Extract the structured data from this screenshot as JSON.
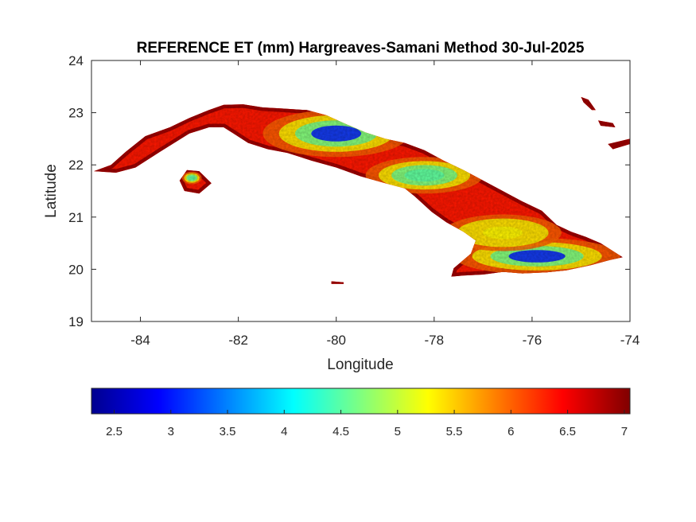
{
  "chart_data": {
    "type": "heatmap",
    "title": "REFERENCE ET (mm) Hargreaves-Samani Method  30-Jul-2025",
    "xlabel": "Longitude",
    "ylabel": "Latitude",
    "xlim": [
      -85,
      -74
    ],
    "ylim": [
      19,
      24
    ],
    "xticks": [
      "-84",
      "-82",
      "-80",
      "-78",
      "-76",
      "-74"
    ],
    "xtick_values": [
      -84,
      -82,
      -80,
      -78,
      -76,
      -74
    ],
    "yticks": [
      "19",
      "20",
      "21",
      "22",
      "23",
      "24"
    ],
    "ytick_values": [
      19,
      20,
      21,
      22,
      23,
      24
    ],
    "colormap": "jet",
    "colorbar": {
      "orientation": "horizontal",
      "range": [
        2.3,
        7.05
      ],
      "ticks": [
        "2.5",
        "3",
        "3.5",
        "4",
        "4.5",
        "5",
        "5.5",
        "6",
        "6.5",
        "7"
      ],
      "tick_values": [
        2.5,
        3,
        3.5,
        4,
        4.5,
        5,
        5.5,
        6,
        6.5,
        7
      ]
    },
    "landmasses": [
      {
        "name": "main-island",
        "outline": [
          [
            -84.95,
            21.88
          ],
          [
            -84.6,
            22.0
          ],
          [
            -84.3,
            22.25
          ],
          [
            -83.9,
            22.55
          ],
          [
            -83.4,
            22.72
          ],
          [
            -83.0,
            22.9
          ],
          [
            -82.6,
            23.05
          ],
          [
            -82.3,
            23.15
          ],
          [
            -81.9,
            23.16
          ],
          [
            -81.5,
            23.1
          ],
          [
            -81.1,
            23.08
          ],
          [
            -80.6,
            23.05
          ],
          [
            -80.2,
            22.95
          ],
          [
            -79.8,
            22.78
          ],
          [
            -79.4,
            22.62
          ],
          [
            -79.0,
            22.5
          ],
          [
            -78.6,
            22.42
          ],
          [
            -78.2,
            22.28
          ],
          [
            -77.8,
            22.08
          ],
          [
            -77.4,
            21.9
          ],
          [
            -77.0,
            21.7
          ],
          [
            -76.6,
            21.5
          ],
          [
            -76.2,
            21.3
          ],
          [
            -75.8,
            21.12
          ],
          [
            -75.5,
            20.85
          ],
          [
            -75.2,
            20.72
          ],
          [
            -74.9,
            20.62
          ],
          [
            -74.6,
            20.5
          ],
          [
            -74.3,
            20.32
          ],
          [
            -74.15,
            20.23
          ],
          [
            -74.4,
            20.18
          ],
          [
            -74.8,
            20.08
          ],
          [
            -75.3,
            19.98
          ],
          [
            -75.7,
            19.94
          ],
          [
            -76.2,
            19.92
          ],
          [
            -76.6,
            19.95
          ],
          [
            -77.0,
            19.9
          ],
          [
            -77.4,
            19.88
          ],
          [
            -77.65,
            19.86
          ],
          [
            -77.6,
            20.02
          ],
          [
            -77.25,
            20.3
          ],
          [
            -77.15,
            20.55
          ],
          [
            -77.4,
            20.72
          ],
          [
            -77.75,
            20.9
          ],
          [
            -78.05,
            21.1
          ],
          [
            -78.4,
            21.4
          ],
          [
            -78.6,
            21.55
          ],
          [
            -79.0,
            21.65
          ],
          [
            -79.5,
            21.78
          ],
          [
            -80.0,
            21.95
          ],
          [
            -80.5,
            22.08
          ],
          [
            -81.0,
            22.23
          ],
          [
            -81.4,
            22.3
          ],
          [
            -81.8,
            22.42
          ],
          [
            -82.1,
            22.6
          ],
          [
            -82.3,
            22.72
          ],
          [
            -82.6,
            22.72
          ],
          [
            -83.0,
            22.6
          ],
          [
            -83.6,
            22.25
          ],
          [
            -84.1,
            21.95
          ],
          [
            -84.5,
            21.85
          ]
        ]
      },
      {
        "name": "isla-de-la-juventud",
        "outline": [
          [
            -83.05,
            21.9
          ],
          [
            -82.8,
            21.88
          ],
          [
            -82.55,
            21.65
          ],
          [
            -82.8,
            21.45
          ],
          [
            -83.1,
            21.5
          ],
          [
            -83.2,
            21.7
          ]
        ]
      },
      {
        "name": "ne-island-1",
        "outline": [
          [
            -75.0,
            23.3
          ],
          [
            -74.85,
            23.25
          ],
          [
            -74.7,
            23.05
          ],
          [
            -74.78,
            23.05
          ],
          [
            -74.95,
            23.2
          ]
        ]
      },
      {
        "name": "ne-island-2",
        "outline": [
          [
            -74.65,
            22.85
          ],
          [
            -74.35,
            22.8
          ],
          [
            -74.3,
            22.72
          ],
          [
            -74.6,
            22.75
          ]
        ]
      },
      {
        "name": "ne-island-3",
        "outline": [
          [
            -74.45,
            22.4
          ],
          [
            -74.0,
            22.5
          ],
          [
            -74.0,
            22.4
          ],
          [
            -74.35,
            22.3
          ]
        ]
      },
      {
        "name": "south-cay",
        "outline": [
          [
            -80.1,
            19.77
          ],
          [
            -79.85,
            19.75
          ],
          [
            -79.85,
            19.72
          ],
          [
            -80.1,
            19.72
          ]
        ]
      }
    ],
    "value_zones": [
      {
        "name": "western-low-et",
        "center": [
          -80.0,
          22.6
        ],
        "radius": [
          1.5,
          0.45
        ],
        "value": 3.0
      },
      {
        "name": "central-low-et",
        "center": [
          -78.2,
          21.8
        ],
        "radius": [
          1.2,
          0.35
        ],
        "value": 4.5
      },
      {
        "name": "eastern-low-et",
        "center": [
          -75.9,
          20.25
        ],
        "radius": [
          1.7,
          0.35
        ],
        "value": 3.0
      },
      {
        "name": "eastern-moderate-et",
        "center": [
          -76.6,
          20.7
        ],
        "radius": [
          1.2,
          0.35
        ],
        "value": 5.3
      },
      {
        "name": "isla-juventud-low-et",
        "center": [
          -82.95,
          21.75
        ],
        "radius": [
          0.2,
          0.12
        ],
        "value": 4.5
      }
    ]
  }
}
